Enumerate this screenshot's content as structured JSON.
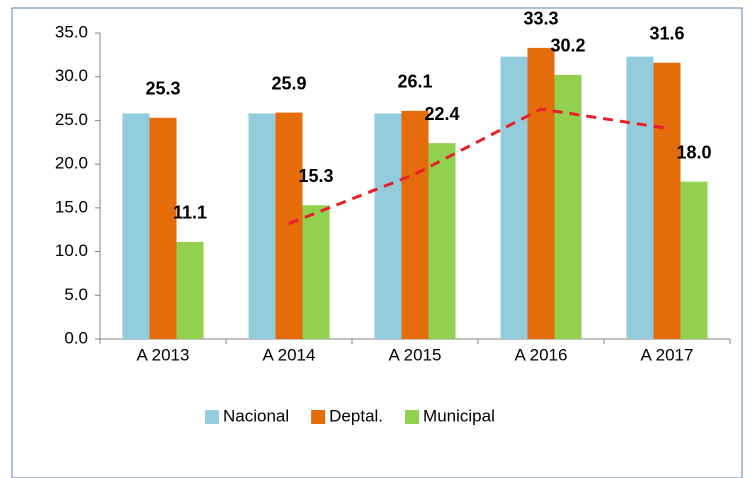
{
  "chart_data": {
    "type": "bar",
    "categories": [
      "A 2013",
      "A 2014",
      "A 2015",
      "A 2016",
      "A 2017"
    ],
    "series": [
      {
        "name": "Nacional",
        "color": "#93cddd",
        "values": [
          25.8,
          25.8,
          25.8,
          32.3,
          32.3
        ]
      },
      {
        "name": "Deptal.",
        "color": "#e46c0a",
        "values": [
          25.3,
          25.9,
          26.1,
          33.3,
          31.6
        ],
        "value_labels": [
          "25.3",
          "25.9",
          "26.1",
          "33.3",
          "31.6"
        ]
      },
      {
        "name": "Municipal",
        "color": "#92d050",
        "values": [
          11.1,
          15.3,
          22.4,
          30.2,
          18.0
        ],
        "value_labels": [
          "11.1",
          "15.3",
          "22.4",
          "30.2",
          "18.0"
        ]
      }
    ],
    "trendline": {
      "color": "#e8202a",
      "values": [
        null,
        13.2,
        18.85,
        26.3,
        24.1
      ]
    },
    "ylim": [
      0,
      35
    ],
    "yticks": [
      {
        "value": 0,
        "label": "0.0"
      },
      {
        "value": 5,
        "label": "5.0"
      },
      {
        "value": 10,
        "label": "10.0"
      },
      {
        "value": 15,
        "label": "15.0"
      },
      {
        "value": 20,
        "label": "20.0"
      },
      {
        "value": 25,
        "label": "25.0"
      },
      {
        "value": 30,
        "label": "30.0"
      },
      {
        "value": 35,
        "label": "35.0"
      }
    ],
    "grid": false,
    "legend": "bottom"
  }
}
